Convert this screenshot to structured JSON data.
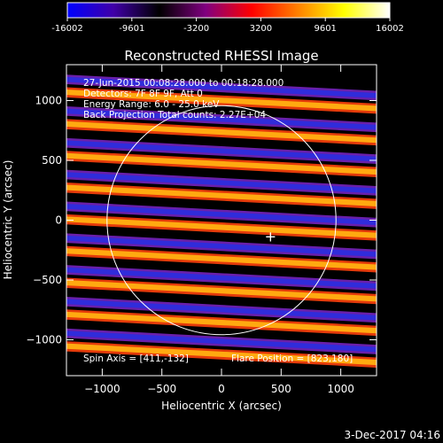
{
  "title": "Reconstructed RHESSI Image",
  "overlay": {
    "line1": "27-Jun-2015 00:08:28.000 to 00:18:28.000",
    "line2": "Detectors: 7F 8F 9F, Att 0",
    "line3": "Energy Range: 6.0 - 25.0 keV",
    "line4": "Back Projection    Total counts: 2.27E+04",
    "spin_axis": "Spin Axis = [411,-132]",
    "flare_position": "Flare Position = [823,180]"
  },
  "footer": "3-Dec-2017 04:16",
  "colorbar": {
    "ticks": [
      "-16002",
      "-9601",
      "-3200",
      "3200",
      "9601",
      "16002"
    ],
    "min": -16002,
    "max": 16002,
    "colors": [
      "#0000ff",
      "#4000a8",
      "#000000",
      "#800080",
      "#ff0000",
      "#ff8000",
      "#ffff00",
      "#ffffff"
    ]
  },
  "chart_data": {
    "type": "heatmap",
    "title": "Reconstructed RHESSI Image",
    "xlabel": "Heliocentric X (arcsec)",
    "ylabel": "Heliocentric Y (arcsec)",
    "xlim": [
      -1300,
      1300
    ],
    "ylim": [
      -1300,
      1300
    ],
    "xticks": [
      -1000,
      -500,
      0,
      500,
      1000
    ],
    "yticks": [
      -1000,
      -500,
      0,
      500,
      1000
    ],
    "xtick_labels": [
      "−1000",
      "−500",
      "0",
      "500",
      "1000"
    ],
    "ytick_labels": [
      "−1000",
      "−500",
      "0",
      "500",
      "1000"
    ],
    "solar_disk": {
      "center": [
        0,
        0
      ],
      "radius": 960
    },
    "marker": {
      "label": "+",
      "position": [
        411,
        -132
      ]
    },
    "flare_position": [
      823,
      180
    ],
    "spin_axis": [
      411,
      -132
    ],
    "fringe_period_arcsec": 265,
    "stripe_tilt_deg": 3
  }
}
